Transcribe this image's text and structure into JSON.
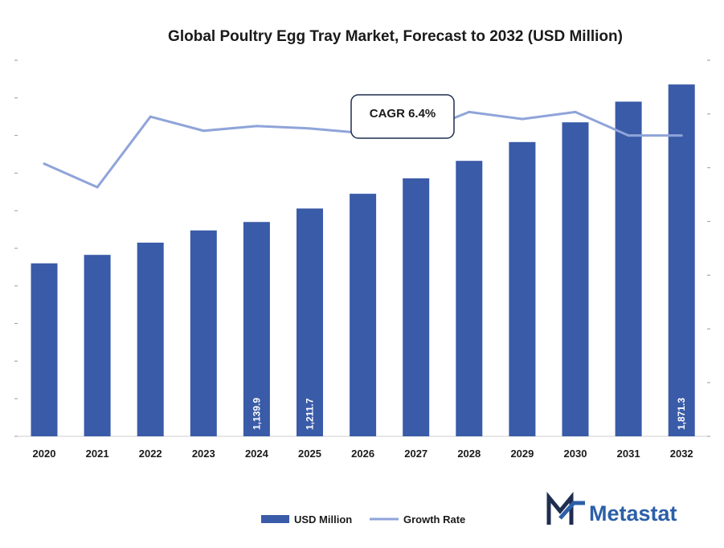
{
  "chart_data": {
    "type": "bar",
    "title": "Global Poultry Egg Tray Market, Forecast to 2032 (USD Million)",
    "categories": [
      "2020",
      "2021",
      "2022",
      "2023",
      "2024",
      "2025",
      "2026",
      "2027",
      "2028",
      "2029",
      "2030",
      "2031",
      "2032"
    ],
    "series": [
      {
        "name": "USD Million",
        "type": "bar",
        "values": [
          920,
          965,
          1030,
          1095,
          1139.9,
          1211.7,
          1290,
          1372,
          1465,
          1565,
          1670,
          1780,
          1871.3
        ],
        "labels": [
          "",
          "",
          "",
          "",
          "1,139.9",
          "1,211.7",
          "",
          "",
          "",
          "",
          "",
          "",
          "1,871.3"
        ]
      },
      {
        "name": "Growth Rate",
        "type": "line",
        "values": [
          5.8,
          5.3,
          6.8,
          6.5,
          6.6,
          6.55,
          6.45,
          6.45,
          6.9,
          6.75,
          6.9,
          6.4,
          6.4
        ]
      }
    ],
    "ylim": [
      0,
      2000
    ],
    "y2lim": [
      0,
      8
    ],
    "annotation": "CAGR 6.4%",
    "legend_position": "bottom",
    "colors": {
      "bar": "#3a5ba8",
      "line": "#8fa4d9"
    }
  },
  "brand": {
    "name": "Metastat",
    "color": "#2c5fa8"
  }
}
